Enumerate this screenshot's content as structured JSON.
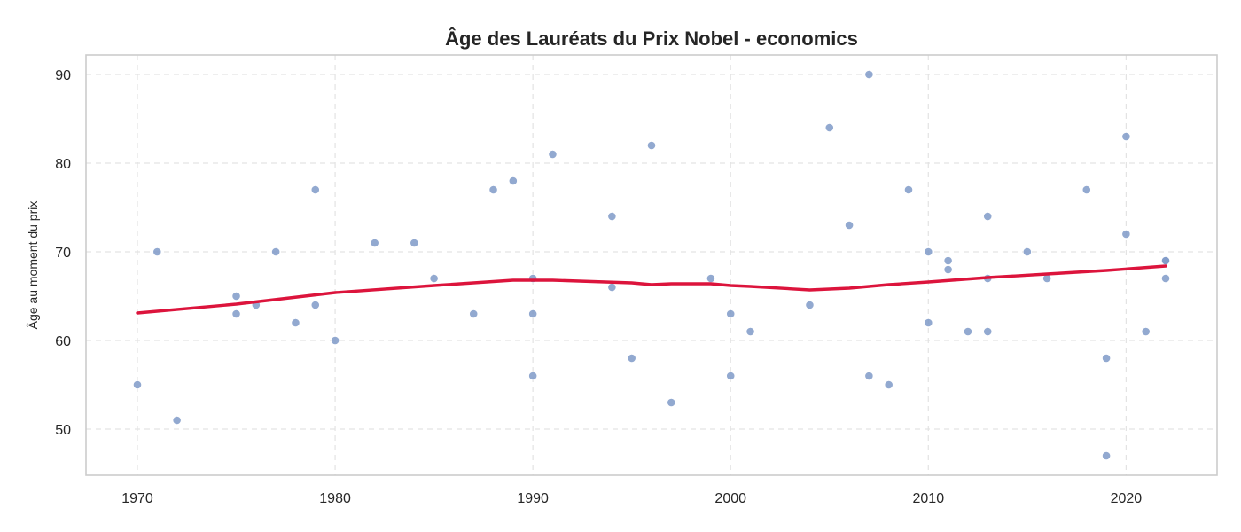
{
  "chart_data": {
    "type": "scatter",
    "title": "Âge des Lauréats du Prix Nobel - economics",
    "xlabel": "",
    "ylabel": "Âge au moment du prix",
    "xlim": [
      1967.4,
      2024.6
    ],
    "ylim": [
      44.8,
      92.2
    ],
    "xticks": [
      1970,
      1980,
      1990,
      2000,
      2010,
      2020
    ],
    "yticks": [
      50,
      60,
      70,
      80,
      90
    ],
    "grid": true,
    "legend": "none",
    "colors": {
      "points": "#7f9ac8",
      "trend": "#dc143c",
      "grid": "#e3e3e3",
      "axes": "#cccccc"
    },
    "series": [
      {
        "kind": "points",
        "points": [
          [
            1970,
            55
          ],
          [
            1971,
            70
          ],
          [
            1972,
            51
          ],
          [
            1975,
            65
          ],
          [
            1975,
            63
          ],
          [
            1976,
            64
          ],
          [
            1977,
            70
          ],
          [
            1978,
            62
          ],
          [
            1979,
            77
          ],
          [
            1979,
            64
          ],
          [
            1980,
            60
          ],
          [
            1982,
            71
          ],
          [
            1984,
            71
          ],
          [
            1985,
            67
          ],
          [
            1987,
            63
          ],
          [
            1988,
            77
          ],
          [
            1989,
            78
          ],
          [
            1990,
            67
          ],
          [
            1990,
            63
          ],
          [
            1990,
            56
          ],
          [
            1991,
            81
          ],
          [
            1994,
            74
          ],
          [
            1994,
            66
          ],
          [
            1995,
            58
          ],
          [
            1996,
            82
          ],
          [
            1997,
            53
          ],
          [
            1999,
            67
          ],
          [
            2000,
            63
          ],
          [
            2000,
            56
          ],
          [
            2001,
            61
          ],
          [
            2004,
            64
          ],
          [
            2005,
            84
          ],
          [
            2006,
            73
          ],
          [
            2007,
            90
          ],
          [
            2007,
            56
          ],
          [
            2008,
            55
          ],
          [
            2009,
            77
          ],
          [
            2010,
            70
          ],
          [
            2010,
            62
          ],
          [
            2011,
            69
          ],
          [
            2011,
            68
          ],
          [
            2012,
            61
          ],
          [
            2013,
            74
          ],
          [
            2013,
            67
          ],
          [
            2013,
            61
          ],
          [
            2015,
            70
          ],
          [
            2016,
            67
          ],
          [
            2018,
            77
          ],
          [
            2019,
            58
          ],
          [
            2019,
            47
          ],
          [
            2020,
            83
          ],
          [
            2020,
            72
          ],
          [
            2021,
            61
          ],
          [
            2022,
            69
          ],
          [
            2022,
            69
          ],
          [
            2022,
            67
          ]
        ]
      },
      {
        "kind": "trend",
        "points": [
          [
            1970,
            63.1
          ],
          [
            1975,
            64.1
          ],
          [
            1980,
            65.4
          ],
          [
            1985,
            66.2
          ],
          [
            1989,
            66.8
          ],
          [
            1991,
            66.8
          ],
          [
            1995,
            66.5
          ],
          [
            1996,
            66.3
          ],
          [
            1997,
            66.4
          ],
          [
            1999,
            66.4
          ],
          [
            2000,
            66.2
          ],
          [
            2001,
            66.1
          ],
          [
            2004,
            65.7
          ],
          [
            2006,
            65.9
          ],
          [
            2008,
            66.3
          ],
          [
            2010,
            66.6
          ],
          [
            2013,
            67.1
          ],
          [
            2016,
            67.5
          ],
          [
            2019,
            67.9
          ],
          [
            2022,
            68.4
          ]
        ]
      }
    ]
  }
}
